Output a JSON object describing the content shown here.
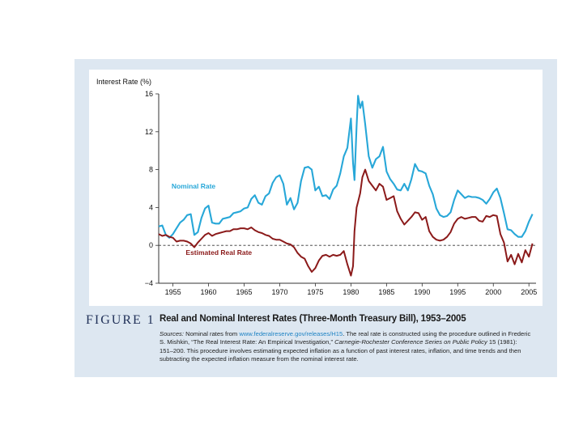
{
  "chart_data": {
    "type": "line",
    "ylabel": "Interest Rate (%)",
    "xlim": [
      1953,
      2006
    ],
    "ylim": [
      -4,
      16
    ],
    "x_ticks": [
      1955,
      1960,
      1965,
      1970,
      1975,
      1980,
      1985,
      1990,
      1995,
      2000,
      2005
    ],
    "x_tick_labels": [
      "1955",
      "1960",
      "1965",
      "1970",
      "1975",
      "1980",
      "1985",
      "1990",
      "1995",
      "2000",
      "2005"
    ],
    "y_ticks": [
      16,
      12,
      8,
      4,
      0,
      -4
    ],
    "y_tick_labels": [
      "16",
      "12",
      "8",
      "4",
      "0",
      "−4"
    ],
    "reference_line": {
      "y": 0,
      "style": "dashed"
    },
    "colors": {
      "nominal": "#27a7d8",
      "real": "#8b1a1a",
      "panel": "#dde7f1",
      "figure_label": "#1f2f57",
      "link": "#1f83c4"
    },
    "series": [
      {
        "name": "Nominal Rate",
        "label_at": [
          1954.8,
          6
        ],
        "x": [
          1953.0,
          1953.5,
          1954.0,
          1954.5,
          1955.0,
          1955.5,
          1956.0,
          1956.5,
          1957.0,
          1957.5,
          1958.0,
          1958.5,
          1959.0,
          1959.5,
          1960.0,
          1960.5,
          1961.0,
          1961.5,
          1962.0,
          1962.5,
          1963.0,
          1963.5,
          1964.0,
          1964.5,
          1965.0,
          1965.5,
          1966.0,
          1966.5,
          1967.0,
          1967.5,
          1968.0,
          1968.5,
          1969.0,
          1969.5,
          1970.0,
          1970.5,
          1971.0,
          1971.5,
          1972.0,
          1972.5,
          1973.0,
          1973.5,
          1974.0,
          1974.5,
          1975.0,
          1975.5,
          1976.0,
          1976.5,
          1977.0,
          1977.5,
          1978.0,
          1978.5,
          1979.0,
          1979.5,
          1980.0,
          1980.3,
          1980.5,
          1980.8,
          1981.0,
          1981.3,
          1981.6,
          1982.0,
          1982.5,
          1983.0,
          1983.5,
          1984.0,
          1984.5,
          1985.0,
          1985.5,
          1986.0,
          1986.5,
          1987.0,
          1987.5,
          1988.0,
          1988.5,
          1989.0,
          1989.5,
          1990.0,
          1990.5,
          1991.0,
          1991.5,
          1992.0,
          1992.5,
          1993.0,
          1993.5,
          1994.0,
          1994.5,
          1995.0,
          1995.5,
          1996.0,
          1996.5,
          1997.0,
          1997.5,
          1998.0,
          1998.5,
          1999.0,
          1999.5,
          2000.0,
          2000.5,
          2001.0,
          2001.5,
          2002.0,
          2002.5,
          2003.0,
          2003.5,
          2004.0,
          2004.5,
          2005.0,
          2005.5
        ],
        "values": [
          2.0,
          2.1,
          1.1,
          0.8,
          1.2,
          1.8,
          2.4,
          2.7,
          3.2,
          3.3,
          1.1,
          1.4,
          2.9,
          3.9,
          4.2,
          2.4,
          2.3,
          2.3,
          2.8,
          2.9,
          3.0,
          3.4,
          3.5,
          3.6,
          3.9,
          4.0,
          4.9,
          5.3,
          4.5,
          4.3,
          5.2,
          5.5,
          6.6,
          7.2,
          7.4,
          6.5,
          4.3,
          5.0,
          3.8,
          4.5,
          6.8,
          8.2,
          8.3,
          8.0,
          5.8,
          6.2,
          5.2,
          5.3,
          4.9,
          5.9,
          6.3,
          7.6,
          9.4,
          10.3,
          13.4,
          8.7,
          6.9,
          12.6,
          15.8,
          14.5,
          15.2,
          12.8,
          9.4,
          8.2,
          9.1,
          9.4,
          10.4,
          7.8,
          7.0,
          6.5,
          5.9,
          5.8,
          6.5,
          5.8,
          7.0,
          8.6,
          7.9,
          7.8,
          7.6,
          6.3,
          5.4,
          3.9,
          3.2,
          3.0,
          3.1,
          3.5,
          4.8,
          5.8,
          5.4,
          5.0,
          5.2,
          5.1,
          5.1,
          5.0,
          4.8,
          4.4,
          4.9,
          5.6,
          6.0,
          5.0,
          3.4,
          1.7,
          1.6,
          1.2,
          0.9,
          0.9,
          1.5,
          2.5,
          3.3
        ]
      },
      {
        "name": "Estimated Real Rate",
        "label_at": [
          1956.8,
          -1
        ],
        "x": [
          1953.0,
          1953.5,
          1954.0,
          1954.5,
          1955.0,
          1955.5,
          1956.0,
          1956.5,
          1957.0,
          1957.5,
          1958.0,
          1958.5,
          1959.0,
          1959.5,
          1960.0,
          1960.5,
          1961.0,
          1961.5,
          1962.0,
          1962.5,
          1963.0,
          1963.5,
          1964.0,
          1964.5,
          1965.0,
          1965.5,
          1966.0,
          1966.5,
          1967.0,
          1967.5,
          1968.0,
          1968.5,
          1969.0,
          1969.5,
          1970.0,
          1970.5,
          1971.0,
          1971.5,
          1972.0,
          1972.5,
          1973.0,
          1973.5,
          1974.0,
          1974.5,
          1975.0,
          1975.5,
          1976.0,
          1976.5,
          1977.0,
          1977.5,
          1978.0,
          1978.5,
          1979.0,
          1979.5,
          1980.0,
          1980.3,
          1980.5,
          1980.8,
          1981.0,
          1981.3,
          1981.6,
          1982.0,
          1982.5,
          1983.0,
          1983.5,
          1984.0,
          1984.5,
          1985.0,
          1985.5,
          1986.0,
          1986.5,
          1987.0,
          1987.5,
          1988.0,
          1988.5,
          1989.0,
          1989.5,
          1990.0,
          1990.5,
          1991.0,
          1991.5,
          1992.0,
          1992.5,
          1993.0,
          1993.5,
          1994.0,
          1994.5,
          1995.0,
          1995.5,
          1996.0,
          1996.5,
          1997.0,
          1997.5,
          1998.0,
          1998.5,
          1999.0,
          1999.5,
          2000.0,
          2000.5,
          2001.0,
          2001.5,
          2002.0,
          2002.5,
          2003.0,
          2003.5,
          2004.0,
          2004.5,
          2005.0,
          2005.5
        ],
        "values": [
          1.2,
          1.0,
          1.1,
          0.9,
          0.8,
          0.4,
          0.5,
          0.5,
          0.4,
          0.2,
          -0.2,
          0.3,
          0.7,
          1.1,
          1.3,
          1.0,
          1.2,
          1.3,
          1.4,
          1.5,
          1.5,
          1.7,
          1.7,
          1.8,
          1.8,
          1.7,
          1.9,
          1.6,
          1.4,
          1.3,
          1.1,
          1.0,
          0.7,
          0.6,
          0.6,
          0.4,
          0.2,
          0.1,
          -0.2,
          -0.8,
          -1.2,
          -1.4,
          -2.2,
          -2.8,
          -2.4,
          -1.6,
          -1.1,
          -1.0,
          -1.2,
          -1.0,
          -1.1,
          -1.0,
          -0.6,
          -2.0,
          -3.2,
          -2.2,
          1.5,
          4.0,
          4.6,
          5.5,
          7.2,
          8.0,
          6.8,
          6.3,
          5.8,
          6.5,
          6.2,
          4.8,
          5.0,
          5.2,
          3.6,
          2.8,
          2.2,
          2.6,
          3.0,
          3.5,
          3.4,
          2.7,
          3.0,
          1.5,
          0.9,
          0.6,
          0.5,
          0.6,
          0.9,
          1.4,
          2.3,
          2.8,
          3.0,
          2.8,
          2.9,
          3.0,
          3.0,
          2.6,
          2.5,
          3.1,
          3.0,
          3.2,
          3.1,
          1.2,
          0.3,
          -1.7,
          -1.0,
          -2.0,
          -0.9,
          -1.8,
          -0.5,
          -1.2,
          0.2
        ]
      }
    ]
  },
  "figure": {
    "label": "FIGURE 1",
    "title": "Real and Nominal Interest Rates (Three-Month Treasury Bill), 1953–2005",
    "sources_label": "Sources:",
    "sources_text_1": " Nominal rates from ",
    "sources_url": "www.federalreserve.gov/releases/H15",
    "sources_text_2": ". The real rate is constructed using the procedure outlined in Frederic S. Mishkin, “The Real Interest Rate: An Empirical Investigation,” ",
    "sources_journal": "Carnegie-Rochester Conference Series on Public Policy",
    "sources_text_3": " 15 (1981): 151–200. This procedure involves estimating expected inflation as a function of past interest rates, inflation, and time trends and then subtracting the expected inflation measure from the nominal interest rate."
  }
}
